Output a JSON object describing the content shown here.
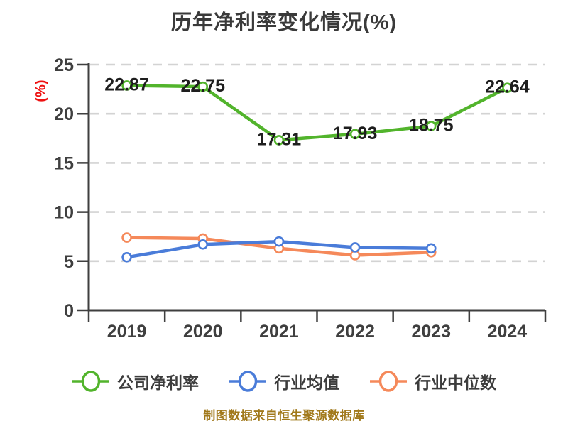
{
  "chart_data": {
    "type": "line",
    "title": "历年净利率变化情况(%)",
    "categories": [
      "2019",
      "2020",
      "2021",
      "2022",
      "2023",
      "2024"
    ],
    "series": [
      {
        "name": "公司净利率",
        "color": "#52B42C",
        "values": [
          22.87,
          22.75,
          17.31,
          17.93,
          18.75,
          22.64
        ],
        "data_labels": true
      },
      {
        "name": "行业均值",
        "color": "#4A7CD9",
        "values": [
          5.4,
          6.7,
          7.0,
          6.4,
          6.3,
          null
        ],
        "data_labels": false
      },
      {
        "name": "行业中位数",
        "color": "#F5895A",
        "values": [
          7.4,
          7.3,
          6.3,
          5.6,
          5.9,
          null
        ],
        "data_labels": false
      }
    ],
    "ylabel": "(%)",
    "xlabel": "",
    "ylim": [
      0,
      25
    ],
    "y_ticks": [
      0,
      5,
      10,
      15,
      20,
      25
    ],
    "grid": "horizontal dashed",
    "legend_position": "bottom",
    "marker_fill": "#FFFFFF"
  },
  "footer": {
    "text": "制图数据来自恒生聚源数据库"
  },
  "colors": {
    "background": "#FFFFFF",
    "axis": "#3F3F3F",
    "grid": "#D3D3D3",
    "title_text": "#3A3A3A",
    "tick_text": "#3F3F3F",
    "data_label_text": "#1E1E1E",
    "ylabel_text": "#EE1111",
    "legend_text": "#3C3C3C",
    "footer_text": "#A1791B"
  }
}
